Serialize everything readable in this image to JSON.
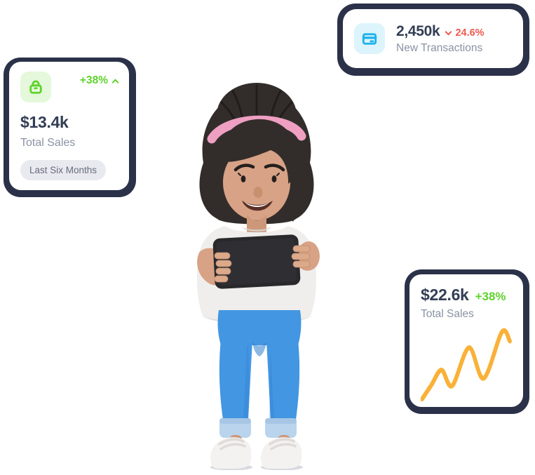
{
  "colors": {
    "card_border_navy": "#2b3148",
    "card_bg": "#ffffff",
    "positive_green": "#5fd32c",
    "positive_green_bg": "#e5f8db",
    "negative_red": "#ee5a52",
    "info_cyan": "#1db2ea",
    "info_cyan_bg": "#ddf4fd",
    "heading_text": "#333e55",
    "muted_text": "#8a92a3",
    "badge_bg": "#e9e9f0",
    "badge_text": "#666d7c",
    "chart_orange": "#f9b138"
  },
  "cards": {
    "total_sales": {
      "icon": "lock-icon",
      "trend": "+38%",
      "trend_direction": "up",
      "value": "$13.4k",
      "label": "Total Sales",
      "badge": "Last Six Months"
    },
    "new_transactions": {
      "icon": "credit-card-icon",
      "value": "2,450k",
      "trend": "24.6%",
      "trend_direction": "down",
      "label": "New Transactions"
    },
    "sales_trend": {
      "value": "$22.6k",
      "trend": "+38%",
      "trend_direction": "up",
      "label": "Total Sales"
    }
  },
  "chart_data": {
    "type": "line",
    "title": "Total Sales sparkline",
    "x": [
      1.5,
      11.8,
      22.8,
      34.6,
      52.9,
      69.1,
      89,
      97.8
    ],
    "y": [
      4,
      23,
      43,
      22,
      73,
      32,
      94,
      82
    ],
    "x_range": [
      0,
      100
    ],
    "y_range": [
      0,
      100
    ],
    "smooth": true,
    "axes_visible": false,
    "legend": "none",
    "line_color": "#f9b138"
  },
  "illustration": {
    "description": "3D woman with dark bun hair and pink headband, white t-shirt, blue jeans with light cuffs, white sneakers, holding a black tablet"
  }
}
